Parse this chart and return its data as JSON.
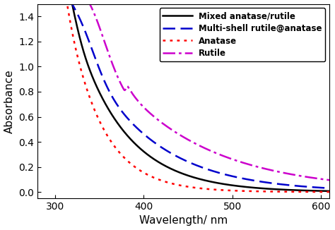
{
  "title": "",
  "xlabel": "Wavelength/ nm",
  "ylabel": "Absorbance",
  "xlim": [
    280,
    610
  ],
  "ylim": [
    -0.05,
    1.5
  ],
  "yticks": [
    0.0,
    0.2,
    0.4,
    0.6,
    0.8,
    1.0,
    1.2,
    1.4
  ],
  "xticks": [
    300,
    400,
    500,
    600
  ],
  "legend": [
    {
      "label": "Mixed anatase/rutile",
      "color": "#000000",
      "linestyle": "solid",
      "linewidth": 1.8
    },
    {
      "label": "Multi-shell rutile@anatase",
      "color": "#0000cc",
      "linestyle": "dashed",
      "linewidth": 1.8
    },
    {
      "label": "Anatase",
      "color": "#ff0000",
      "linestyle": "dotted",
      "linewidth": 1.8
    },
    {
      "label": "Rutile",
      "color": "#cc00cc",
      "linestyle": "dashdot",
      "linewidth": 1.8
    }
  ],
  "background_color": "#ffffff"
}
